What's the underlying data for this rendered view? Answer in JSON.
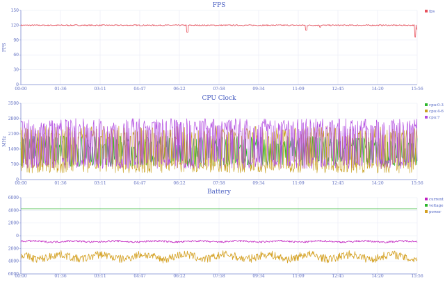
{
  "chart_data": [
    {
      "type": "line",
      "title": "FPS",
      "xlabel": "",
      "ylabel": "FPS",
      "ylim": [
        0,
        150
      ],
      "yticks": [
        "0",
        "30",
        "60",
        "90",
        "120",
        "150"
      ],
      "x_ticks": [
        "00:00",
        "01:36",
        "03:11",
        "04:47",
        "06:22",
        "07:58",
        "09:34",
        "11:09",
        "12:45",
        "14:20",
        "15:56"
      ],
      "grid": true,
      "legend": "right",
      "series": [
        {
          "name": "fps",
          "color": "#e8505b",
          "baseline": 120,
          "noise": 1.2,
          "dips": [
            [
              0.42,
              106
            ],
            [
              0.72,
              110
            ],
            [
              0.755,
              116
            ],
            [
              0.995,
              96
            ],
            [
              1.0,
              112
            ]
          ]
        }
      ]
    },
    {
      "type": "line",
      "title": "CPU Clock",
      "xlabel": "",
      "ylabel": "MHz",
      "ylim": [
        0,
        3500
      ],
      "yticks": [
        "0",
        "700",
        "1400",
        "2100",
        "2800",
        "3500"
      ],
      "x_ticks": [
        "00:00",
        "01:36",
        "03:11",
        "04:47",
        "06:22",
        "07:58",
        "09:34",
        "11:09",
        "12:45",
        "14:20",
        "15:56"
      ],
      "grid": true,
      "legend": "right",
      "series": [
        {
          "name": "cpu:0-3",
          "color": "#2bb52b",
          "range": [
            600,
            2000
          ]
        },
        {
          "name": "cpu:4-6",
          "color": "#c8a020",
          "range": [
            300,
            2450
          ]
        },
        {
          "name": "cpu:7",
          "color": "#b24ce0",
          "range": [
            500,
            2800
          ]
        }
      ]
    },
    {
      "type": "line",
      "title": "Battery",
      "xlabel": "",
      "ylabel": "",
      "ylim": [
        -6000,
        6000
      ],
      "yticks": [
        "6000",
        "4000",
        "2000",
        "0",
        "2000",
        "4000",
        "6000"
      ],
      "x_ticks": [
        "00:00",
        "01:36",
        "03:11",
        "04:47",
        "06:22",
        "07:58",
        "09:34",
        "11:09",
        "12:45",
        "14:20",
        "15:56"
      ],
      "grid": true,
      "legend": "right",
      "series": [
        {
          "name": "current",
          "color": "#c020c0",
          "baseline": -900,
          "amp": 200
        },
        {
          "name": "voltage",
          "color": "#2bb52b",
          "baseline": 4250,
          "amp": 0
        },
        {
          "name": "power",
          "color": "#d4a020",
          "baseline": -3300,
          "amp": 900
        }
      ]
    }
  ]
}
